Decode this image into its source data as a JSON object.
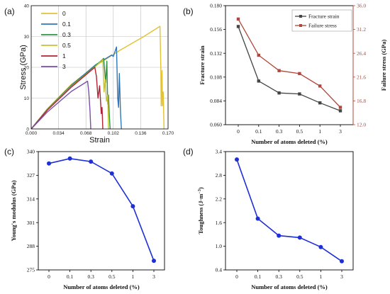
{
  "chart_data": [
    {
      "panel": "(a)",
      "type": "line",
      "xlabel": "Strain",
      "ylabel": "Stress (GPa)",
      "xlim": [
        0,
        0.17
      ],
      "ylim": [
        0,
        40
      ],
      "xticks": [
        "0.000",
        "0.034",
        "0.068",
        "0.102",
        "0.136",
        "0.170"
      ],
      "yticks": [
        "0",
        "10",
        "20",
        "30",
        "40"
      ],
      "legend_position": "top-left",
      "series": [
        {
          "name": "0",
          "color": "#e3c234",
          "x": [
            0,
            0.02,
            0.05,
            0.08,
            0.11,
            0.14,
            0.16,
            0.161,
            0.1615,
            0.1625,
            0.163,
            0.164,
            0.165
          ],
          "y": [
            0,
            6.5,
            14.5,
            20.5,
            25.5,
            30,
            33.3,
            20,
            7.5,
            19,
            7.5,
            12,
            0
          ]
        },
        {
          "name": "0.1",
          "color": "#2f77b9",
          "x": [
            0,
            0.02,
            0.05,
            0.08,
            0.1,
            0.102,
            0.106,
            0.1075,
            0.1085,
            0.1095,
            0.111,
            0.112
          ],
          "y": [
            0,
            6.4,
            14.2,
            20.8,
            24,
            23.5,
            26.6,
            10,
            7,
            18,
            5,
            0
          ]
        },
        {
          "name": "0.3",
          "color": "#2f9444",
          "x": [
            0,
            0.02,
            0.05,
            0.08,
            0.09,
            0.0925,
            0.094,
            0.095,
            0.096,
            0.097,
            0.098
          ],
          "y": [
            0,
            6.3,
            14,
            20.5,
            22.9,
            15,
            22,
            8,
            11,
            5,
            0
          ]
        },
        {
          "name": "0.5",
          "color": "#c8c236",
          "x": [
            0,
            0.02,
            0.05,
            0.08,
            0.089,
            0.0905,
            0.092,
            0.0935,
            0.095,
            0.096
          ],
          "y": [
            0,
            6.2,
            13.8,
            20.3,
            22.5,
            12,
            16,
            9,
            11,
            0
          ]
        },
        {
          "name": "1",
          "color": "#b22234",
          "x": [
            0,
            0.02,
            0.05,
            0.079,
            0.081,
            0.083,
            0.085,
            0.087,
            0.088,
            0.089
          ],
          "y": [
            0,
            6.1,
            13.6,
            20,
            17,
            10,
            14,
            5,
            7,
            0
          ]
        },
        {
          "name": "3",
          "color": "#7a4fa8",
          "x": [
            0,
            0.02,
            0.05,
            0.07,
            0.0715,
            0.073,
            0.074
          ],
          "y": [
            0,
            5.5,
            12.2,
            15.5,
            12,
            6,
            0
          ]
        }
      ]
    },
    {
      "panel": "(b)",
      "type": "line",
      "xlabel": "Number of atoms deleted (%)",
      "ylabel": "Fracture strain",
      "ylabel_right": "Failure stress (GPa)",
      "categories": [
        "0",
        "0.1",
        "0.3",
        "0.5",
        "1",
        "3"
      ],
      "ylim": [
        0.06,
        0.18
      ],
      "yticks": [
        "0.060",
        "0.084",
        "0.108",
        "0.132",
        "0.156",
        "0.180"
      ],
      "ylim_right": [
        12.0,
        36.0
      ],
      "yticks_right": [
        "12.0",
        "16.8",
        "21.6",
        "26.4",
        "31.2",
        "36.0"
      ],
      "legend_position": "top-right",
      "series": [
        {
          "name": "Fracture strain",
          "color": "#454545",
          "axis": "left",
          "values": [
            0.159,
            0.104,
            0.092,
            0.091,
            0.082,
            0.074
          ]
        },
        {
          "name": "Failure stress",
          "color": "#b0473a",
          "axis": "right",
          "values": [
            33.3,
            26.0,
            22.9,
            22.3,
            19.8,
            15.5
          ]
        }
      ]
    },
    {
      "panel": "(c)",
      "type": "line",
      "xlabel": "Number of atoms deleted (%)",
      "ylabel": "Young's modulus (GPa)",
      "categories": [
        "0",
        "0.1",
        "0.3",
        "0.5",
        "1",
        "3"
      ],
      "ylim": [
        275,
        340
      ],
      "yticks": [
        "275",
        "288",
        "301",
        "314",
        "327",
        "340"
      ],
      "color": "#1f2fd6",
      "values": [
        333.5,
        336.2,
        334.5,
        328.0,
        310.0,
        280.0
      ]
    },
    {
      "panel": "(d)",
      "type": "line",
      "xlabel": "Number of atoms deleted (%)",
      "ylabel": "Toughness (J·m",
      "ylabel_sup": "−3",
      "ylabel_close": ")",
      "categories": [
        "0",
        "0.1",
        "0.3",
        "0.5",
        "1",
        "3"
      ],
      "ylim": [
        0.4,
        3.4
      ],
      "yticks": [
        "0.4",
        "1.0",
        "1.6",
        "2.2",
        "2.8",
        "3.4"
      ],
      "color": "#1f2fd6",
      "values": [
        3.2,
        1.7,
        1.27,
        1.22,
        0.98,
        0.62
      ]
    }
  ]
}
